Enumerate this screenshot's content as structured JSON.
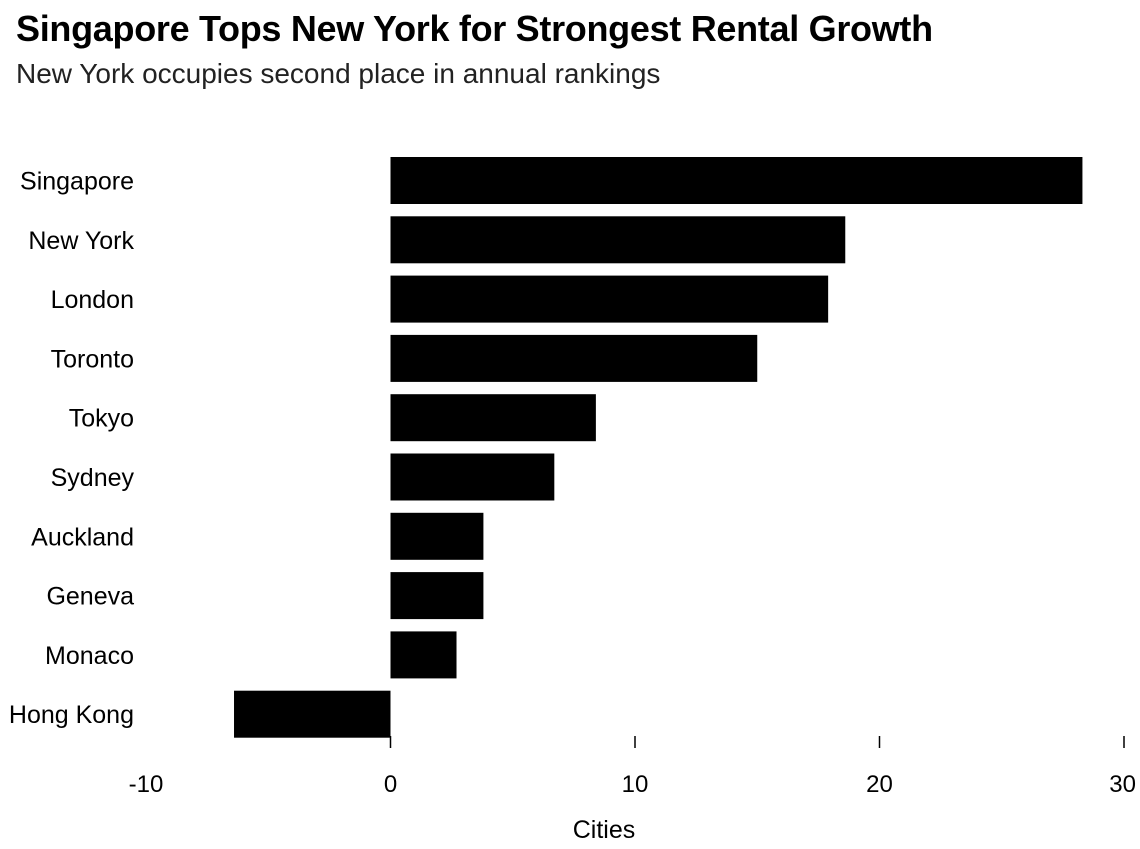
{
  "header": {
    "title": "Singapore Tops New York for Strongest Rental Growth",
    "subtitle": "New York occupies second place in annual rankings"
  },
  "chart_data": {
    "type": "bar",
    "orientation": "horizontal",
    "title": "Singapore Tops New York for Strongest Rental Growth",
    "subtitle": "New York occupies second place in annual rankings",
    "categories": [
      "Singapore",
      "New York",
      "London",
      "Toronto",
      "Tokyo",
      "Sydney",
      "Auckland",
      "Geneva",
      "Monaco",
      "Hong Kong"
    ],
    "values": [
      28.3,
      18.6,
      17.9,
      15.0,
      8.4,
      6.7,
      3.8,
      3.8,
      2.7,
      -6.4
    ],
    "xlabel": "Cities",
    "ylabel": "",
    "xlim": [
      -10,
      30
    ],
    "xticks": [
      -10,
      0,
      10,
      20,
      30
    ],
    "xtick_labels": [
      "-10",
      "0",
      "10",
      "20",
      "30"
    ],
    "grid": false,
    "legend": "none",
    "bar_color": "#000000"
  }
}
